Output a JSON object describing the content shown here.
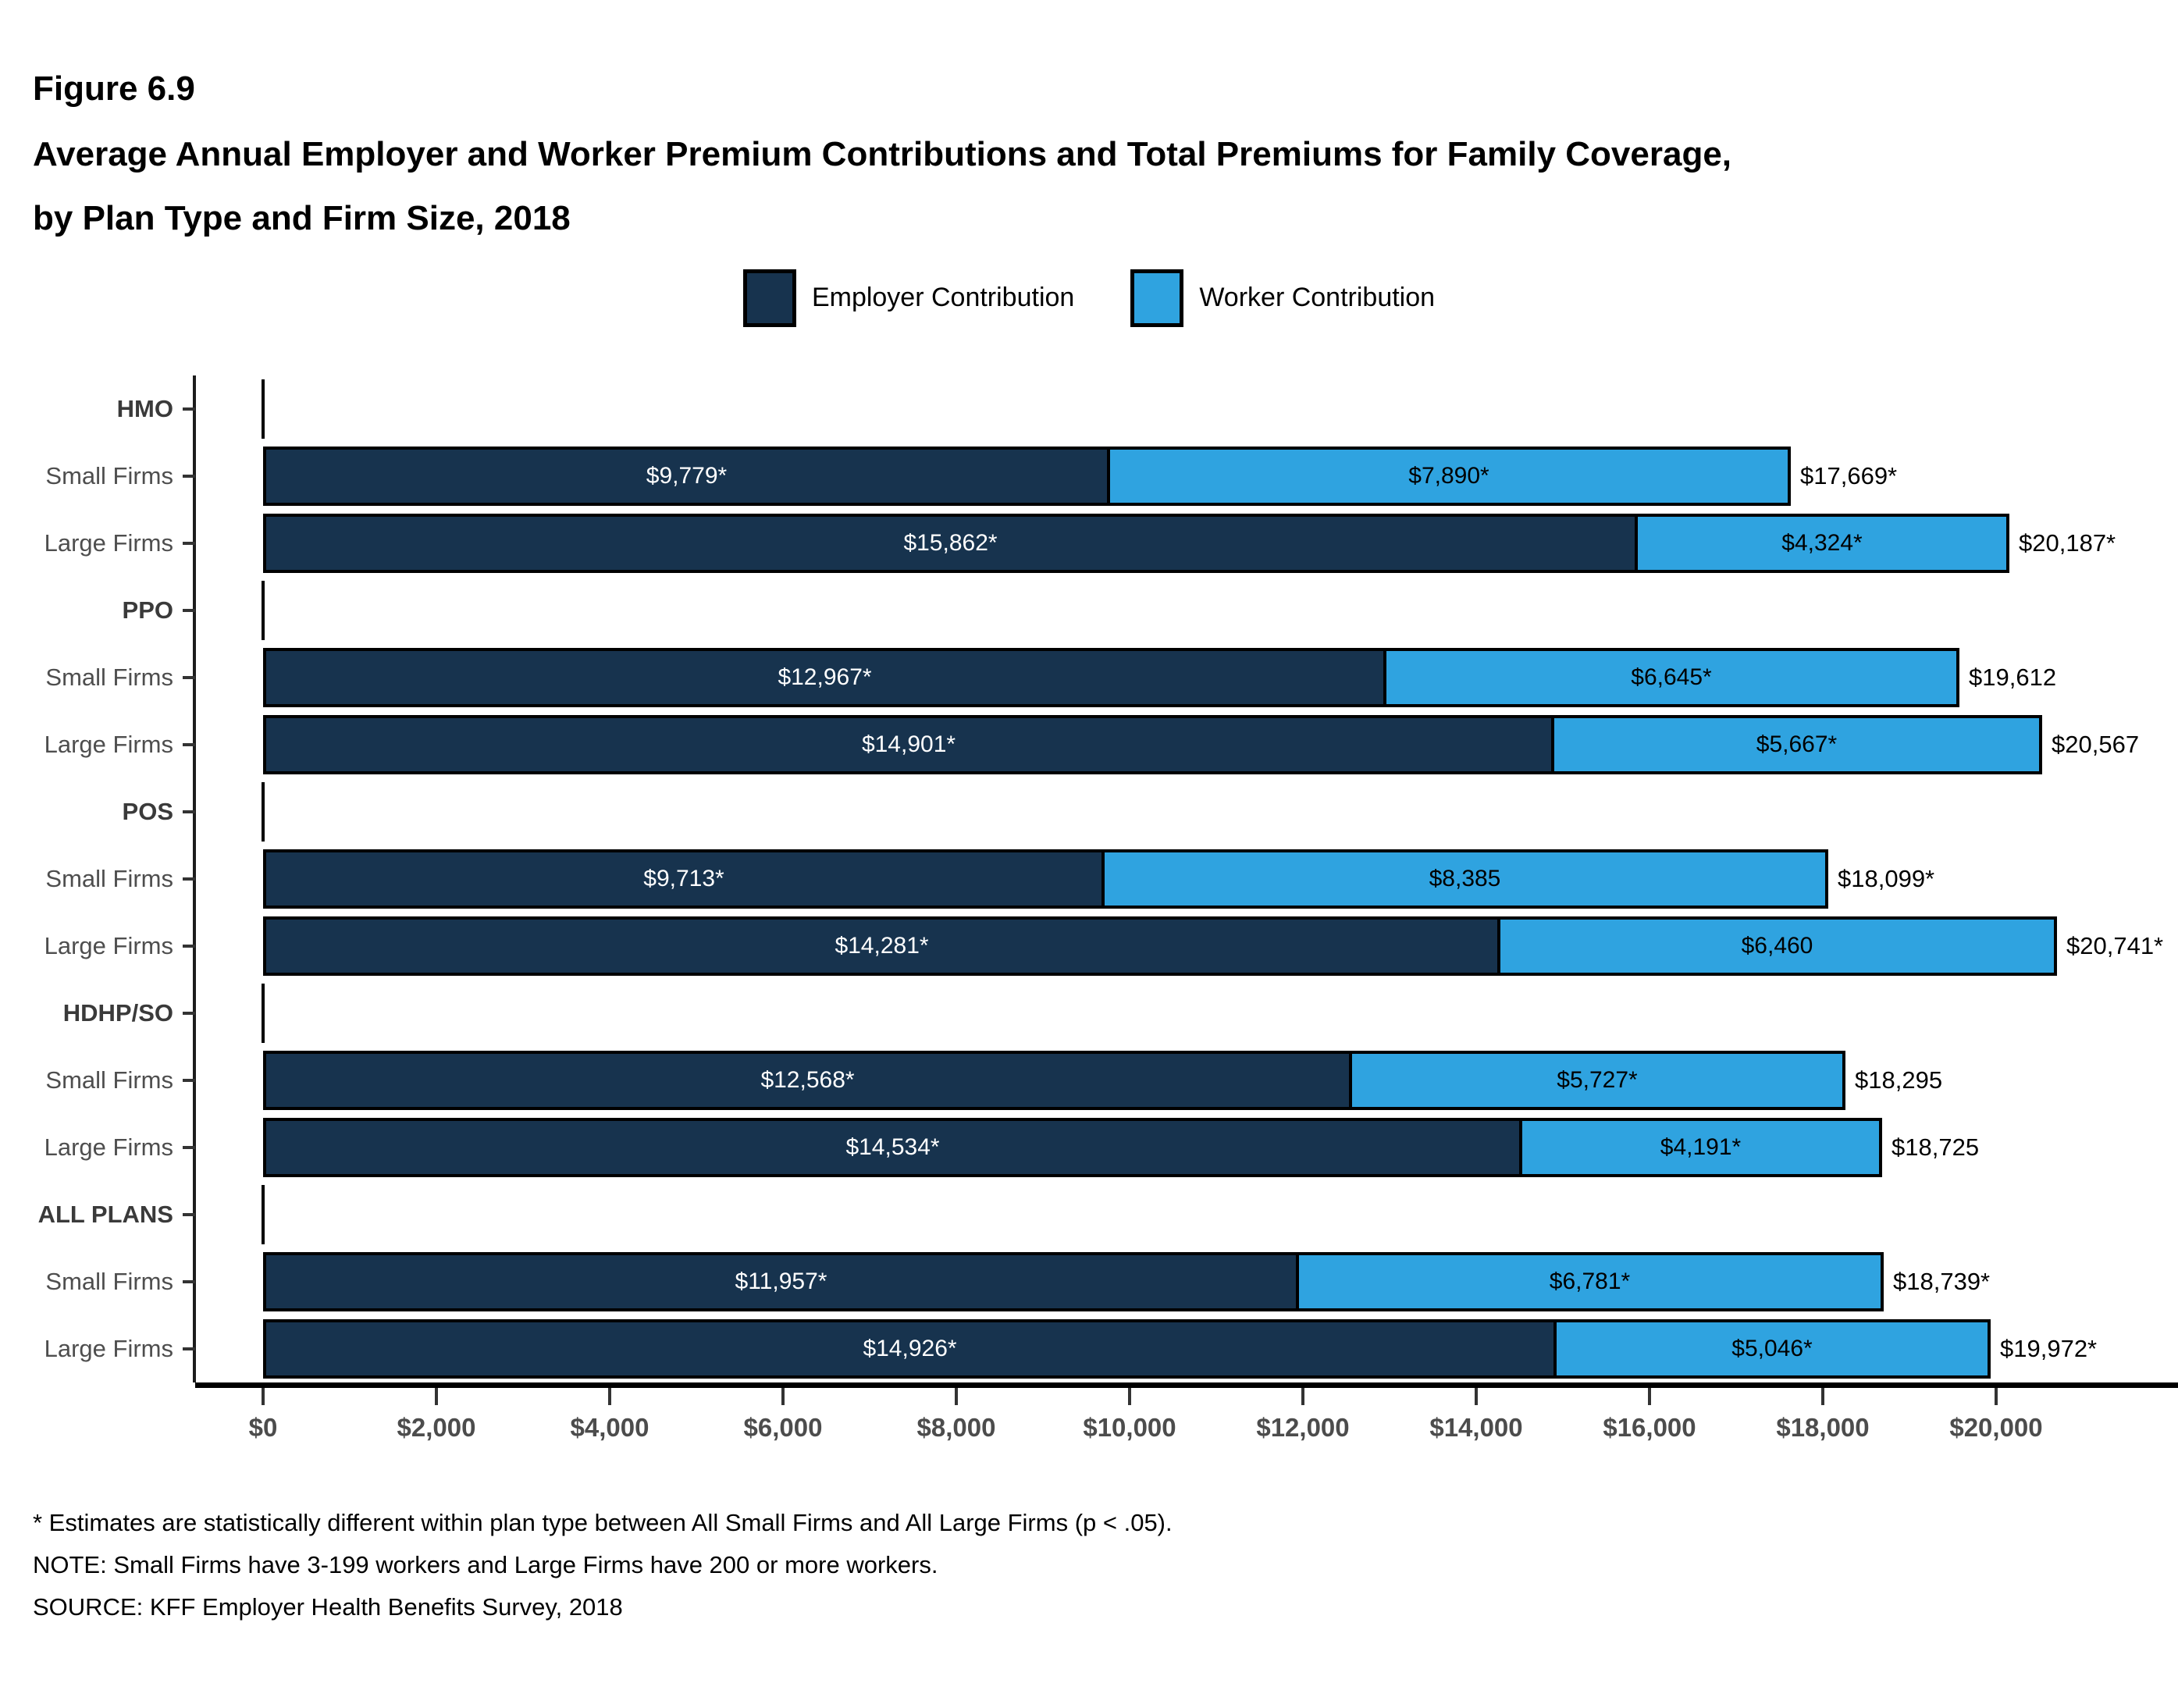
{
  "figure": {
    "label": "Figure 6.9",
    "title": "Average Annual Employer and Worker Premium Contributions and Total Premiums for Family Coverage, by Plan Type and Firm Size, 2018"
  },
  "legend": {
    "items": [
      {
        "name": "Employer Contribution",
        "color": "#17334E"
      },
      {
        "name": "Worker Contribution",
        "color": "#2FA3E0"
      }
    ]
  },
  "chart_data": {
    "type": "bar",
    "orientation": "horizontal",
    "stacked": true,
    "unit": "USD",
    "legend_position": "top",
    "series_names": [
      "Employer Contribution",
      "Worker Contribution"
    ],
    "colors": {
      "employer": "#17334E",
      "worker": "#2FA3E0",
      "bar_border": "#000000"
    },
    "x_axis": {
      "ticks": [
        "$0",
        "$2,000",
        "$4,000",
        "$6,000",
        "$8,000",
        "$10,000",
        "$12,000",
        "$14,000",
        "$16,000",
        "$18,000",
        "$20,000"
      ],
      "values": [
        0,
        2000,
        4000,
        6000,
        8000,
        10000,
        12000,
        14000,
        16000,
        18000,
        20000
      ],
      "xlim": [
        0,
        22000
      ],
      "grid": false
    },
    "groups": [
      {
        "label": "HMO",
        "rows": [
          {
            "label": "Small Firms",
            "employer": 9779,
            "worker": 7890,
            "total": 17669,
            "employer_label": "$9,779*",
            "worker_label": "$7,890*",
            "total_label": "$17,669*"
          },
          {
            "label": "Large Firms",
            "employer": 15862,
            "worker": 4324,
            "total": 20187,
            "employer_label": "$15,862*",
            "worker_label": "$4,324*",
            "total_label": "$20,187*"
          }
        ]
      },
      {
        "label": "PPO",
        "rows": [
          {
            "label": "Small Firms",
            "employer": 12967,
            "worker": 6645,
            "total": 19612,
            "employer_label": "$12,967*",
            "worker_label": "$6,645*",
            "total_label": "$19,612"
          },
          {
            "label": "Large Firms",
            "employer": 14901,
            "worker": 5667,
            "total": 20567,
            "employer_label": "$14,901*",
            "worker_label": "$5,667*",
            "total_label": "$20,567"
          }
        ]
      },
      {
        "label": "POS",
        "rows": [
          {
            "label": "Small Firms",
            "employer": 9713,
            "worker": 8385,
            "total": 18099,
            "employer_label": "$9,713*",
            "worker_label": "$8,385",
            "total_label": "$18,099*"
          },
          {
            "label": "Large Firms",
            "employer": 14281,
            "worker": 6460,
            "total": 20741,
            "employer_label": "$14,281*",
            "worker_label": "$6,460",
            "total_label": "$20,741*"
          }
        ]
      },
      {
        "label": "HDHP/SO",
        "rows": [
          {
            "label": "Small Firms",
            "employer": 12568,
            "worker": 5727,
            "total": 18295,
            "employer_label": "$12,568*",
            "worker_label": "$5,727*",
            "total_label": "$18,295"
          },
          {
            "label": "Large Firms",
            "employer": 14534,
            "worker": 4191,
            "total": 18725,
            "employer_label": "$14,534*",
            "worker_label": "$4,191*",
            "total_label": "$18,725"
          }
        ]
      },
      {
        "label": "ALL PLANS",
        "rows": [
          {
            "label": "Small Firms",
            "employer": 11957,
            "worker": 6781,
            "total": 18739,
            "employer_label": "$11,957*",
            "worker_label": "$6,781*",
            "total_label": "$18,739*"
          },
          {
            "label": "Large Firms",
            "employer": 14926,
            "worker": 5046,
            "total": 19972,
            "employer_label": "$14,926*",
            "worker_label": "$5,046*",
            "total_label": "$19,972*"
          }
        ]
      }
    ]
  },
  "footnotes": [
    "* Estimates are statistically different within plan type between All Small Firms and All Large Firms (p < .05).",
    "NOTE: Small Firms have 3-199 workers and Large Firms have 200 or more workers.",
    "SOURCE: KFF Employer Health Benefits Survey, 2018"
  ]
}
